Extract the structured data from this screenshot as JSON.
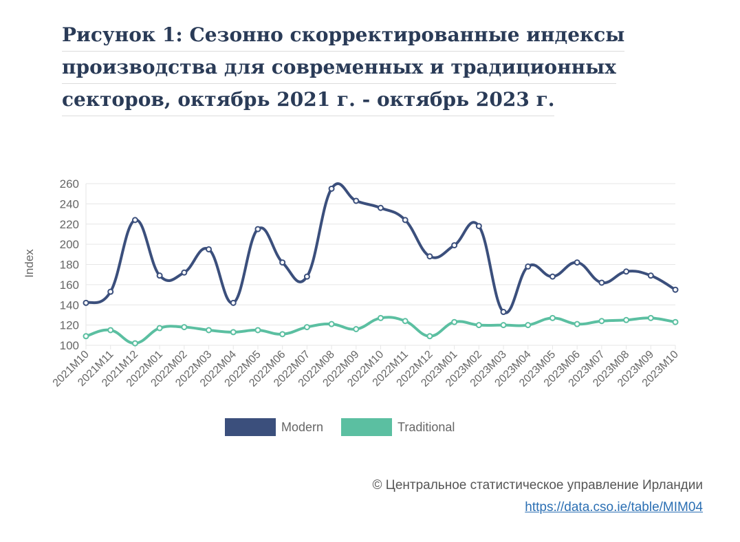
{
  "title": {
    "line1": "Рисунок 1: Сезонно скорректированные индексы",
    "line2": "производства для современных и традиционных",
    "line3": "секторов, октябрь 2021 г. - октябрь 2023 г."
  },
  "chart_data": {
    "type": "line",
    "ylabel": "Index",
    "ylim": [
      100,
      260
    ],
    "yticks": [
      100,
      120,
      140,
      160,
      180,
      200,
      220,
      240,
      260
    ],
    "grid": true,
    "legend_position": "bottom",
    "categories": [
      "2021M10",
      "2021M11",
      "2021M12",
      "2022M01",
      "2022M02",
      "2022M03",
      "2022M04",
      "2022M05",
      "2022M06",
      "2022M07",
      "2022M08",
      "2022M09",
      "2022M10",
      "2022M11",
      "2022M12",
      "2023M01",
      "2023M02",
      "2023M03",
      "2023M04",
      "2023M05",
      "2023M06",
      "2023M07",
      "2023M08",
      "2023M09",
      "2023M10"
    ],
    "series": [
      {
        "name": "Modern",
        "color": "#3b4f7c",
        "values": [
          142,
          153,
          224,
          169,
          172,
          195,
          142,
          215,
          182,
          168,
          255,
          243,
          236,
          224,
          188,
          199,
          218,
          133,
          178,
          168,
          182,
          162,
          173,
          169,
          155
        ]
      },
      {
        "name": "Traditional",
        "color": "#5bbfa1",
        "values": [
          109,
          115,
          102,
          117,
          118,
          115,
          113,
          115,
          111,
          118,
          121,
          116,
          127,
          124,
          109,
          123,
          120,
          120,
          120,
          127,
          121,
          124,
          125,
          127,
          123
        ]
      }
    ]
  },
  "footer": {
    "copyright": "© Центральное статистическое управление Ирландии",
    "link": "https://data.cso.ie/table/MIM04"
  }
}
